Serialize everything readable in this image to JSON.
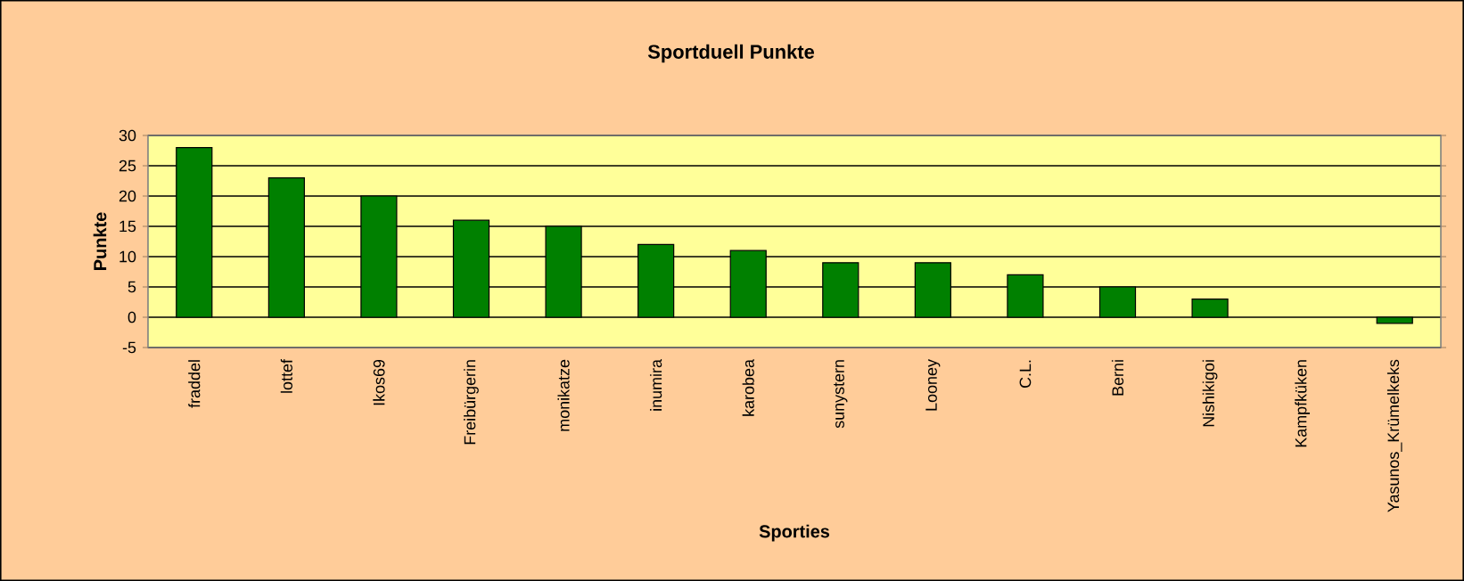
{
  "chart_data": {
    "type": "bar",
    "title": "Sportduell Punkte",
    "xlabel": "Sporties",
    "ylabel": "Punkte",
    "categories": [
      "fraddel",
      "lottef",
      "Ikos69",
      "Freibürgerin",
      "monikatze",
      "inumira",
      "karobea",
      "sunystern",
      "Looney",
      "C.L.",
      "Berni",
      "Nishikigoi",
      "Kampfküken",
      "Yasunos_Krümelkeks"
    ],
    "values": [
      28,
      23,
      20,
      16,
      15,
      12,
      11,
      9,
      9,
      7,
      5,
      3,
      0,
      -1
    ],
    "color": "#008000",
    "ylim": [
      -5,
      30
    ],
    "yticks": [
      -5,
      0,
      5,
      10,
      15,
      20,
      25,
      30
    ],
    "grid": "y"
  }
}
